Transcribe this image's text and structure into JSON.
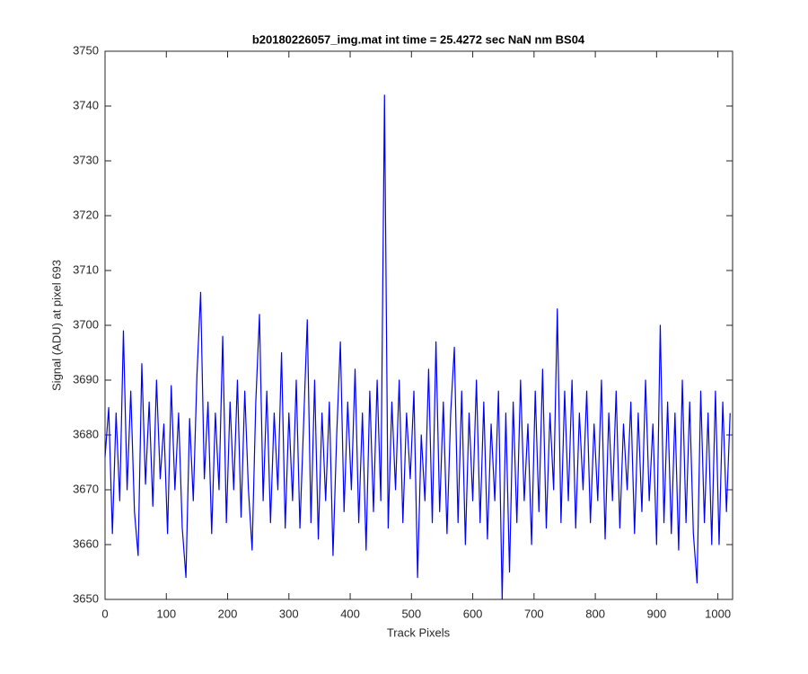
{
  "chart_data": {
    "type": "line",
    "title": "b20180226057_img.mat int time = 25.4272 sec  NaN nm BS04",
    "xlabel": "Track Pixels",
    "ylabel": "Signal (ADU) at pixel 693",
    "x": [
      0,
      6,
      12,
      18,
      24,
      30,
      36,
      42,
      48,
      54,
      60,
      66,
      72,
      78,
      84,
      90,
      96,
      102,
      108,
      114,
      120,
      126,
      132,
      138,
      144,
      150,
      156,
      162,
      168,
      174,
      180,
      186,
      192,
      198,
      204,
      210,
      216,
      222,
      228,
      234,
      240,
      246,
      252,
      258,
      264,
      270,
      276,
      282,
      288,
      294,
      300,
      306,
      312,
      318,
      324,
      330,
      336,
      342,
      348,
      354,
      360,
      366,
      372,
      378,
      384,
      390,
      396,
      402,
      408,
      414,
      420,
      426,
      432,
      438,
      444,
      450,
      456,
      462,
      468,
      474,
      480,
      486,
      492,
      498,
      504,
      510,
      516,
      522,
      528,
      534,
      540,
      546,
      552,
      558,
      564,
      570,
      576,
      582,
      588,
      594,
      600,
      606,
      612,
      618,
      624,
      630,
      636,
      642,
      648,
      654,
      660,
      666,
      672,
      678,
      684,
      690,
      696,
      702,
      708,
      714,
      720,
      726,
      732,
      738,
      744,
      750,
      756,
      762,
      768,
      774,
      780,
      786,
      792,
      798,
      804,
      810,
      816,
      822,
      828,
      834,
      840,
      846,
      852,
      858,
      864,
      870,
      876,
      882,
      888,
      894,
      900,
      906,
      912,
      918,
      924,
      930,
      936,
      942,
      948,
      954,
      960,
      966,
      972,
      978,
      984,
      990,
      996,
      1002,
      1008,
      1014,
      1020
    ],
    "series": [
      {
        "name": "signal",
        "color": "#0000ff",
        "values": [
          3676,
          3685,
          3662,
          3684,
          3668,
          3699,
          3670,
          3688,
          3666,
          3658,
          3693,
          3671,
          3686,
          3667,
          3690,
          3672,
          3682,
          3662,
          3689,
          3670,
          3684,
          3663,
          3654,
          3683,
          3668,
          3691,
          3706,
          3672,
          3686,
          3662,
          3684,
          3670,
          3698,
          3664,
          3686,
          3670,
          3690,
          3665,
          3688,
          3670,
          3659,
          3686,
          3702,
          3668,
          3688,
          3664,
          3684,
          3670,
          3695,
          3663,
          3684,
          3668,
          3690,
          3663,
          3682,
          3701,
          3664,
          3690,
          3661,
          3684,
          3668,
          3686,
          3658,
          3680,
          3697,
          3666,
          3686,
          3670,
          3692,
          3664,
          3684,
          3659,
          3688,
          3666,
          3690,
          3668,
          3742,
          3663,
          3686,
          3670,
          3690,
          3664,
          3684,
          3672,
          3688,
          3654,
          3680,
          3668,
          3692,
          3664,
          3697,
          3666,
          3686,
          3662,
          3684,
          3696,
          3664,
          3688,
          3660,
          3684,
          3668,
          3690,
          3664,
          3686,
          3661,
          3682,
          3668,
          3688,
          3650,
          3684,
          3655,
          3686,
          3664,
          3690,
          3668,
          3682,
          3660,
          3688,
          3666,
          3692,
          3663,
          3684,
          3670,
          3703,
          3664,
          3688,
          3668,
          3690,
          3663,
          3684,
          3670,
          3688,
          3664,
          3682,
          3668,
          3690,
          3661,
          3684,
          3668,
          3688,
          3663,
          3682,
          3670,
          3686,
          3662,
          3684,
          3666,
          3690,
          3668,
          3682,
          3660,
          3700,
          3664,
          3686,
          3662,
          3684,
          3659,
          3690,
          3664,
          3686,
          3662,
          3653,
          3688,
          3664,
          3684,
          3660,
          3688,
          3660,
          3686,
          3666,
          3684
        ]
      }
    ],
    "xlim": [
      0,
      1024
    ],
    "xticks": [
      0,
      100,
      200,
      300,
      400,
      500,
      600,
      700,
      800,
      900,
      1000
    ],
    "ylim": [
      3650,
      3750
    ],
    "yticks": [
      3650,
      3660,
      3670,
      3680,
      3690,
      3700,
      3710,
      3720,
      3730,
      3740,
      3750
    ],
    "grid": false
  }
}
